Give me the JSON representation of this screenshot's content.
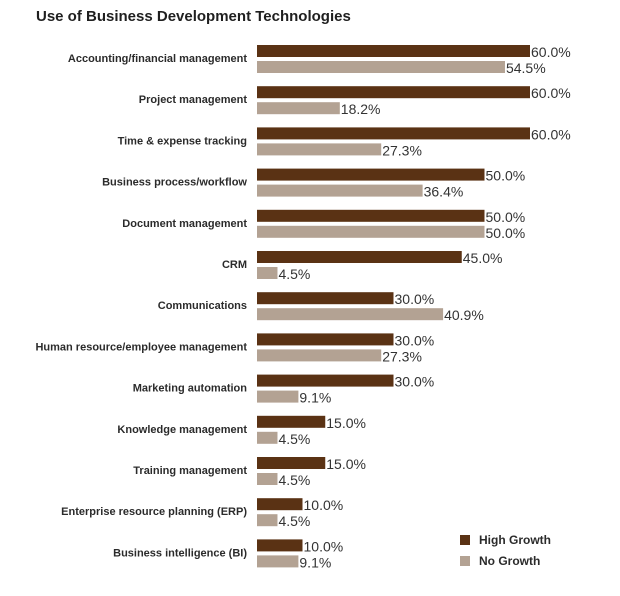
{
  "chart_data": {
    "type": "bar",
    "orientation": "horizontal",
    "title": "Use of Business Development Technologies",
    "xlim": [
      0,
      60
    ],
    "grid": false,
    "legend_position": "bottom-right",
    "categories": [
      "Accounting/financial management",
      "Project management",
      "Time & expense tracking",
      "Business process/workflow",
      "Document management",
      "CRM",
      "Communications",
      "Human resource/employee management",
      "Marketing automation",
      "Knowledge management",
      "Training management",
      "Enterprise resource planning (ERP)",
      "Business intelligence (BI)"
    ],
    "series": [
      {
        "name": "High Growth",
        "color": "#5a3214",
        "values": [
          60.0,
          60.0,
          60.0,
          50.0,
          50.0,
          45.0,
          30.0,
          30.0,
          30.0,
          15.0,
          15.0,
          10.0,
          10.0
        ],
        "labels": [
          "60.0%",
          "60.0%",
          "60.0%",
          "50.0%",
          "50.0%",
          "45.0%",
          "30.0%",
          "30.0%",
          "30.0%",
          "15.0%",
          "15.0%",
          "10.0%",
          "10.0%"
        ]
      },
      {
        "name": "No Growth",
        "color": "#b3a293",
        "values": [
          54.5,
          18.2,
          27.3,
          36.4,
          50.0,
          4.5,
          40.9,
          27.3,
          9.1,
          4.5,
          4.5,
          4.5,
          9.1
        ],
        "labels": [
          "54.5%",
          "18.2%",
          "27.3%",
          "36.4%",
          "50.0%",
          "4.5%",
          "40.9%",
          "27.3%",
          "9.1%",
          "4.5%",
          "4.5%",
          "4.5%",
          "9.1%"
        ]
      }
    ]
  }
}
